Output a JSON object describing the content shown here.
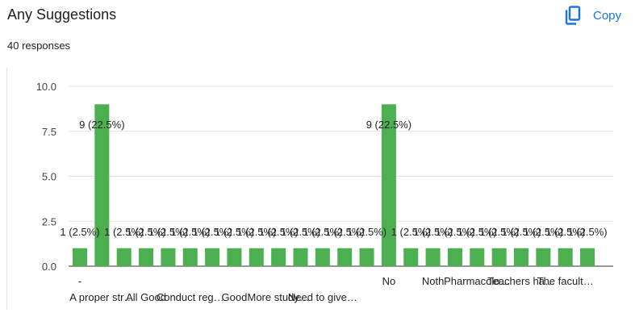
{
  "header": {
    "title": "Any Suggestions",
    "copy_label": "Copy",
    "copy_icon": "copy-icon",
    "responses": "40 responses"
  },
  "colors": {
    "bar": "#4caf50",
    "accent": "#1a73e8",
    "grid": "#e0e0e0",
    "axis": "#333333",
    "text": "#202124"
  },
  "chart_data": {
    "type": "bar",
    "ylim": [
      0,
      10
    ],
    "y_ticks": [
      "0.0",
      "2.5",
      "5.0",
      "7.5",
      "10.0"
    ],
    "y_tick_values": [
      0,
      2.5,
      5,
      7.5,
      10
    ],
    "grid": true,
    "values": [
      1,
      9,
      1,
      1,
      1,
      1,
      1,
      1,
      1,
      1,
      1,
      1,
      1,
      1,
      9,
      1,
      1,
      1,
      1,
      1,
      1,
      1,
      1,
      1
    ],
    "data_labels": [
      "1 (2.5%)",
      "9 (22.5%)",
      "1 (2.5%)",
      "1 (2.5%)",
      "1 (2.5%)",
      "1 (2.5%)",
      "1 (2.5%)",
      "1 (2.5%)",
      "1 (2.5%)",
      "1 (2.5%)",
      "1 (2.5%)",
      "1 (2.5%)",
      "1 (2.5%)",
      "1 (2.5%)",
      "9 (22.5%)",
      "1 (2.5%)",
      "1 (2.5%)",
      "1 (2.5%)",
      "1 (2.5%)",
      "1 (2.5%)",
      "1 (2.5%)",
      "1 (2.5%)",
      "1 (2.5%)",
      "1 (2.5%)"
    ],
    "categories": [
      "-",
      "A proper str…",
      "",
      "All Good",
      "",
      "Conduct reg…",
      "",
      "Good",
      "",
      "More study…",
      "",
      "Need to give…",
      "",
      "",
      "No",
      "",
      "Noth",
      "",
      "Pharmacolo…",
      "",
      "Teachers ha…",
      "",
      "The facult…",
      ""
    ]
  }
}
